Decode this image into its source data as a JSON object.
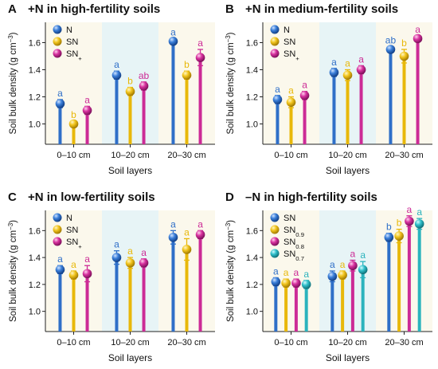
{
  "chart_data": [
    {
      "type": "bar",
      "panel_label": "A",
      "title": "+N in high-fertility soils",
      "xlabel": "Soil layers",
      "ylabel": "Soil bulk density (g cm−3)",
      "ylim": [
        0.85,
        1.75
      ],
      "yticks": [
        "1.0",
        "1.2",
        "1.4",
        "1.6"
      ],
      "categories": [
        "0–10 cm",
        "10–20 cm",
        "20–30 cm"
      ],
      "legend": [
        "N",
        "SN",
        "SN+"
      ],
      "series": [
        {
          "name": "N",
          "color": "#2f6fc8",
          "values": [
            1.15,
            1.36,
            1.61
          ],
          "errors": [
            0.03,
            0.03,
            0.02
          ],
          "labels": [
            "a",
            "a",
            "a"
          ]
        },
        {
          "name": "SN",
          "color": "#e8b80a",
          "values": [
            1.0,
            1.24,
            1.36
          ],
          "errors": [
            0.02,
            0.03,
            0.03
          ],
          "labels": [
            "b",
            "b",
            "b"
          ]
        },
        {
          "name": "SN+",
          "color": "#cc2b96",
          "values": [
            1.1,
            1.28,
            1.49
          ],
          "errors": [
            0.03,
            0.03,
            0.06
          ],
          "labels": [
            "a",
            "ab",
            "a"
          ]
        }
      ]
    },
    {
      "type": "bar",
      "panel_label": "B",
      "title": "+N in medium-fertility soils",
      "xlabel": "Soil layers",
      "ylabel": "Soil bulk density (g cm−3)",
      "ylim": [
        0.85,
        1.75
      ],
      "yticks": [
        "1.0",
        "1.2",
        "1.4",
        "1.6"
      ],
      "categories": [
        "0–10 cm",
        "10–20 cm",
        "20–30 cm"
      ],
      "legend": [
        "N",
        "SN",
        "SN+"
      ],
      "series": [
        {
          "name": "N",
          "color": "#2f6fc8",
          "values": [
            1.18,
            1.38,
            1.55
          ],
          "errors": [
            0.03,
            0.03,
            0.02
          ],
          "labels": [
            "a",
            "a",
            "ab"
          ]
        },
        {
          "name": "SN",
          "color": "#e8b80a",
          "values": [
            1.16,
            1.36,
            1.5
          ],
          "errors": [
            0.04,
            0.04,
            0.05
          ],
          "labels": [
            "a",
            "a",
            "b"
          ]
        },
        {
          "name": "SN+",
          "color": "#cc2b96",
          "values": [
            1.21,
            1.4,
            1.63
          ],
          "errors": [
            0.03,
            0.03,
            0.02
          ],
          "labels": [
            "a",
            "a",
            "a"
          ]
        }
      ]
    },
    {
      "type": "bar",
      "panel_label": "C",
      "title": "+N in low-fertility soils",
      "xlabel": "Soil layers",
      "ylabel": "Soil bulk density (g cm−3)",
      "ylim": [
        0.85,
        1.75
      ],
      "yticks": [
        "1.0",
        "1.2",
        "1.4",
        "1.6"
      ],
      "categories": [
        "0–10 cm",
        "10–20 cm",
        "20–30 cm"
      ],
      "legend": [
        "N",
        "SN",
        "SN+"
      ],
      "series": [
        {
          "name": "N",
          "color": "#2f6fc8",
          "values": [
            1.31,
            1.4,
            1.55
          ],
          "errors": [
            0.03,
            0.05,
            0.05
          ],
          "labels": [
            "a",
            "a",
            "a"
          ]
        },
        {
          "name": "SN",
          "color": "#e8b80a",
          "values": [
            1.27,
            1.36,
            1.46
          ],
          "errors": [
            0.03,
            0.04,
            0.08
          ],
          "labels": [
            "a",
            "a",
            "a"
          ]
        },
        {
          "name": "SN+",
          "color": "#cc2b96",
          "values": [
            1.28,
            1.36,
            1.57
          ],
          "errors": [
            0.06,
            0.03,
            0.03
          ],
          "labels": [
            "a",
            "a",
            "a"
          ]
        }
      ]
    },
    {
      "type": "bar",
      "panel_label": "D",
      "title": "–N in high-fertility soils",
      "xlabel": "Soil layers",
      "ylabel": "Soil bulk density (g cm−3)",
      "ylim": [
        0.85,
        1.75
      ],
      "yticks": [
        "1.0",
        "1.2",
        "1.4",
        "1.6"
      ],
      "categories": [
        "0–10 cm",
        "10–20 cm",
        "20–30 cm"
      ],
      "legend": [
        "SN",
        "SN0.9",
        "SN0.8",
        "SN0.7"
      ],
      "series": [
        {
          "name": "SN",
          "color": "#2f6fc8",
          "values": [
            1.22,
            1.26,
            1.55
          ],
          "errors": [
            0.03,
            0.04,
            0.03
          ],
          "labels": [
            "a",
            "a",
            "b"
          ]
        },
        {
          "name": "SN0.9",
          "color": "#e8b80a",
          "values": [
            1.21,
            1.27,
            1.56
          ],
          "errors": [
            0.03,
            0.03,
            0.05
          ],
          "labels": [
            "a",
            "a",
            "b"
          ]
        },
        {
          "name": "SN0.8",
          "color": "#cc2b96",
          "values": [
            1.21,
            1.34,
            1.67
          ],
          "errors": [
            0.03,
            0.04,
            0.04
          ],
          "labels": [
            "a",
            "a",
            "a"
          ]
        },
        {
          "name": "SN0.7",
          "color": "#2bb3bd",
          "values": [
            1.2,
            1.31,
            1.65
          ],
          "errors": [
            0.03,
            0.06,
            0.04
          ],
          "labels": [
            "a",
            "a",
            "a"
          ]
        }
      ]
    }
  ]
}
